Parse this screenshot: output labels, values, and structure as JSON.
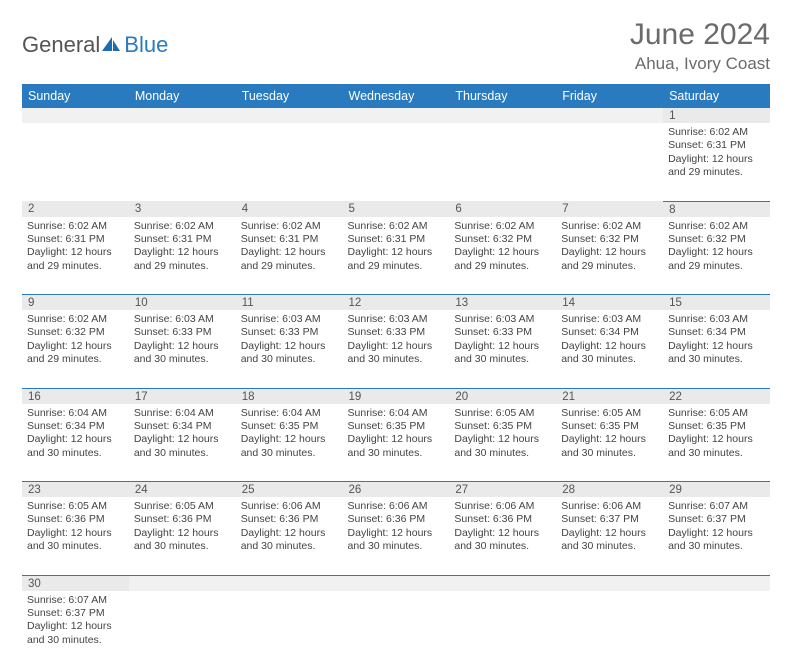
{
  "logo": {
    "word1": "General",
    "word2": "Blue",
    "icon_color": "#1f6bb0"
  },
  "header": {
    "title": "June 2024",
    "location": "Ahua, Ivory Coast"
  },
  "colors": {
    "header_bg": "#2a7ac0",
    "header_text": "#ffffff",
    "rule": "#2a7ac0",
    "daynum_bg": "#eaeaea",
    "body_text": "#444444",
    "title_text": "#6b6b6b"
  },
  "weekdays": [
    "Sunday",
    "Monday",
    "Tuesday",
    "Wednesday",
    "Thursday",
    "Friday",
    "Saturday"
  ],
  "weeks": [
    [
      null,
      null,
      null,
      null,
      null,
      null,
      {
        "n": 1,
        "sunrise": "Sunrise: 6:02 AM",
        "sunset": "Sunset: 6:31 PM",
        "d1": "Daylight: 12 hours",
        "d2": "and 29 minutes."
      }
    ],
    [
      {
        "n": 2,
        "sunrise": "Sunrise: 6:02 AM",
        "sunset": "Sunset: 6:31 PM",
        "d1": "Daylight: 12 hours",
        "d2": "and 29 minutes."
      },
      {
        "n": 3,
        "sunrise": "Sunrise: 6:02 AM",
        "sunset": "Sunset: 6:31 PM",
        "d1": "Daylight: 12 hours",
        "d2": "and 29 minutes."
      },
      {
        "n": 4,
        "sunrise": "Sunrise: 6:02 AM",
        "sunset": "Sunset: 6:31 PM",
        "d1": "Daylight: 12 hours",
        "d2": "and 29 minutes."
      },
      {
        "n": 5,
        "sunrise": "Sunrise: 6:02 AM",
        "sunset": "Sunset: 6:31 PM",
        "d1": "Daylight: 12 hours",
        "d2": "and 29 minutes."
      },
      {
        "n": 6,
        "sunrise": "Sunrise: 6:02 AM",
        "sunset": "Sunset: 6:32 PM",
        "d1": "Daylight: 12 hours",
        "d2": "and 29 minutes."
      },
      {
        "n": 7,
        "sunrise": "Sunrise: 6:02 AM",
        "sunset": "Sunset: 6:32 PM",
        "d1": "Daylight: 12 hours",
        "d2": "and 29 minutes."
      },
      {
        "n": 8,
        "sunrise": "Sunrise: 6:02 AM",
        "sunset": "Sunset: 6:32 PM",
        "d1": "Daylight: 12 hours",
        "d2": "and 29 minutes."
      }
    ],
    [
      {
        "n": 9,
        "sunrise": "Sunrise: 6:02 AM",
        "sunset": "Sunset: 6:32 PM",
        "d1": "Daylight: 12 hours",
        "d2": "and 29 minutes."
      },
      {
        "n": 10,
        "sunrise": "Sunrise: 6:03 AM",
        "sunset": "Sunset: 6:33 PM",
        "d1": "Daylight: 12 hours",
        "d2": "and 30 minutes."
      },
      {
        "n": 11,
        "sunrise": "Sunrise: 6:03 AM",
        "sunset": "Sunset: 6:33 PM",
        "d1": "Daylight: 12 hours",
        "d2": "and 30 minutes."
      },
      {
        "n": 12,
        "sunrise": "Sunrise: 6:03 AM",
        "sunset": "Sunset: 6:33 PM",
        "d1": "Daylight: 12 hours",
        "d2": "and 30 minutes."
      },
      {
        "n": 13,
        "sunrise": "Sunrise: 6:03 AM",
        "sunset": "Sunset: 6:33 PM",
        "d1": "Daylight: 12 hours",
        "d2": "and 30 minutes."
      },
      {
        "n": 14,
        "sunrise": "Sunrise: 6:03 AM",
        "sunset": "Sunset: 6:34 PM",
        "d1": "Daylight: 12 hours",
        "d2": "and 30 minutes."
      },
      {
        "n": 15,
        "sunrise": "Sunrise: 6:03 AM",
        "sunset": "Sunset: 6:34 PM",
        "d1": "Daylight: 12 hours",
        "d2": "and 30 minutes."
      }
    ],
    [
      {
        "n": 16,
        "sunrise": "Sunrise: 6:04 AM",
        "sunset": "Sunset: 6:34 PM",
        "d1": "Daylight: 12 hours",
        "d2": "and 30 minutes."
      },
      {
        "n": 17,
        "sunrise": "Sunrise: 6:04 AM",
        "sunset": "Sunset: 6:34 PM",
        "d1": "Daylight: 12 hours",
        "d2": "and 30 minutes."
      },
      {
        "n": 18,
        "sunrise": "Sunrise: 6:04 AM",
        "sunset": "Sunset: 6:35 PM",
        "d1": "Daylight: 12 hours",
        "d2": "and 30 minutes."
      },
      {
        "n": 19,
        "sunrise": "Sunrise: 6:04 AM",
        "sunset": "Sunset: 6:35 PM",
        "d1": "Daylight: 12 hours",
        "d2": "and 30 minutes."
      },
      {
        "n": 20,
        "sunrise": "Sunrise: 6:05 AM",
        "sunset": "Sunset: 6:35 PM",
        "d1": "Daylight: 12 hours",
        "d2": "and 30 minutes."
      },
      {
        "n": 21,
        "sunrise": "Sunrise: 6:05 AM",
        "sunset": "Sunset: 6:35 PM",
        "d1": "Daylight: 12 hours",
        "d2": "and 30 minutes."
      },
      {
        "n": 22,
        "sunrise": "Sunrise: 6:05 AM",
        "sunset": "Sunset: 6:35 PM",
        "d1": "Daylight: 12 hours",
        "d2": "and 30 minutes."
      }
    ],
    [
      {
        "n": 23,
        "sunrise": "Sunrise: 6:05 AM",
        "sunset": "Sunset: 6:36 PM",
        "d1": "Daylight: 12 hours",
        "d2": "and 30 minutes."
      },
      {
        "n": 24,
        "sunrise": "Sunrise: 6:05 AM",
        "sunset": "Sunset: 6:36 PM",
        "d1": "Daylight: 12 hours",
        "d2": "and 30 minutes."
      },
      {
        "n": 25,
        "sunrise": "Sunrise: 6:06 AM",
        "sunset": "Sunset: 6:36 PM",
        "d1": "Daylight: 12 hours",
        "d2": "and 30 minutes."
      },
      {
        "n": 26,
        "sunrise": "Sunrise: 6:06 AM",
        "sunset": "Sunset: 6:36 PM",
        "d1": "Daylight: 12 hours",
        "d2": "and 30 minutes."
      },
      {
        "n": 27,
        "sunrise": "Sunrise: 6:06 AM",
        "sunset": "Sunset: 6:36 PM",
        "d1": "Daylight: 12 hours",
        "d2": "and 30 minutes."
      },
      {
        "n": 28,
        "sunrise": "Sunrise: 6:06 AM",
        "sunset": "Sunset: 6:37 PM",
        "d1": "Daylight: 12 hours",
        "d2": "and 30 minutes."
      },
      {
        "n": 29,
        "sunrise": "Sunrise: 6:07 AM",
        "sunset": "Sunset: 6:37 PM",
        "d1": "Daylight: 12 hours",
        "d2": "and 30 minutes."
      }
    ],
    [
      {
        "n": 30,
        "sunrise": "Sunrise: 6:07 AM",
        "sunset": "Sunset: 6:37 PM",
        "d1": "Daylight: 12 hours",
        "d2": "and 30 minutes."
      },
      null,
      null,
      null,
      null,
      null,
      null
    ]
  ]
}
